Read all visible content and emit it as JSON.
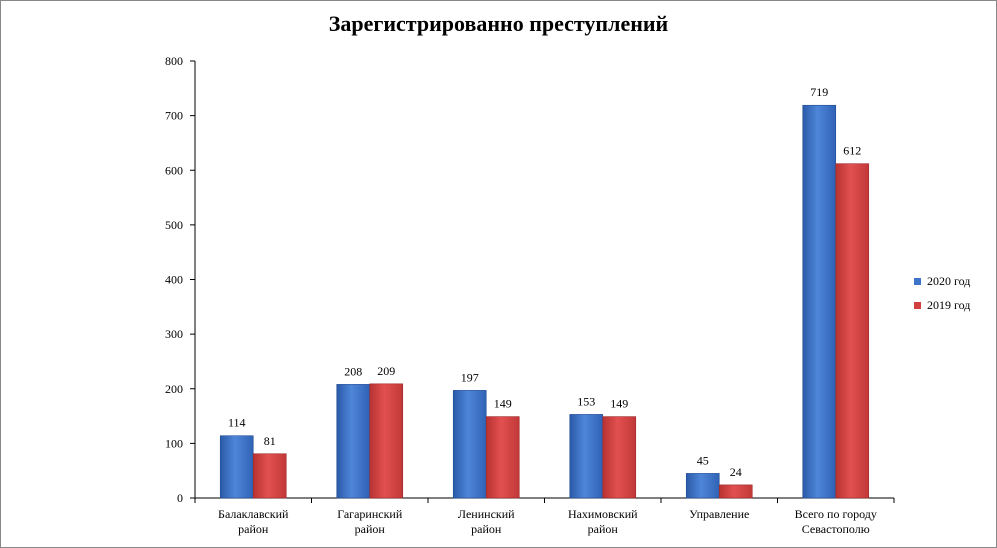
{
  "chart_data": {
    "type": "bar",
    "title": "Зарегистрированно преступлений",
    "categories": [
      [
        "Балаклавский",
        "район"
      ],
      [
        "Гагаринский",
        "район"
      ],
      [
        "Ленинский",
        "район"
      ],
      [
        "Нахимовский",
        "район"
      ],
      [
        "Управление"
      ],
      [
        "Всего по городу",
        "Севастополю"
      ]
    ],
    "series": [
      {
        "name": "2020 год",
        "color": "#3d74c9",
        "values": [
          114,
          208,
          197,
          153,
          45,
          719
        ]
      },
      {
        "name": "2019 год",
        "color": "#d23f3f",
        "values": [
          81,
          209,
          149,
          149,
          24,
          612
        ]
      }
    ],
    "ylim": [
      0,
      800
    ],
    "yticks": [
      0,
      100,
      200,
      300,
      400,
      500,
      600,
      700,
      800
    ],
    "legend_position": "right",
    "grid": false
  }
}
